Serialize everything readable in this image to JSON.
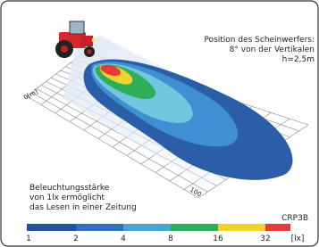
{
  "header": {
    "lines": [
      "Position des Scheinwerfers:",
      "8° von der Vertikalen",
      "h=2,5m"
    ]
  },
  "axis": {
    "origin_label": "0[m]",
    "end_label": "100"
  },
  "note": {
    "lines": [
      "Beleuchtungsstärke",
      "von 1lx ermöglicht",
      "das Lesen in einer Zeitung"
    ]
  },
  "code": "CRP3B",
  "color_scale": {
    "labels": [
      1,
      2,
      4,
      8,
      16,
      32
    ],
    "unit": "[lx]"
  }
}
